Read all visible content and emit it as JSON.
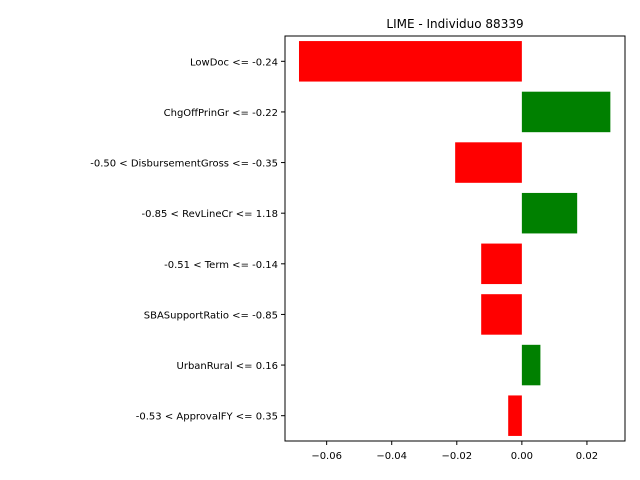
{
  "chart_data": {
    "type": "bar",
    "orientation": "horizontal",
    "title": "LIME - Individuo 88339",
    "xlabel": "",
    "ylabel": "",
    "categories": [
      "LowDoc <= -0.24",
      "ChgOffPrinGr <= -0.22",
      "-0.50 < DisbursementGross <= -0.35",
      "-0.85 < RevLineCr <= 1.18",
      "-0.51 < Term <= -0.14",
      "SBASupportRatio <= -0.85",
      "UrbanRural <= 0.16",
      "-0.53 < ApprovalFY <= 0.35"
    ],
    "values": [
      -0.0685,
      0.0272,
      -0.0205,
      0.017,
      -0.0125,
      -0.0125,
      0.0057,
      -0.0042
    ],
    "xlim": [
      -0.0728,
      0.0317
    ],
    "xticks": [
      -0.06,
      -0.04,
      -0.02,
      0.0,
      0.02
    ],
    "xtick_labels": [
      "−0.06",
      "−0.04",
      "−0.02",
      "0.00",
      "0.02"
    ],
    "colors": {
      "positive": "#008000",
      "negative": "#ff0000"
    },
    "grid": false,
    "legend": "none"
  }
}
